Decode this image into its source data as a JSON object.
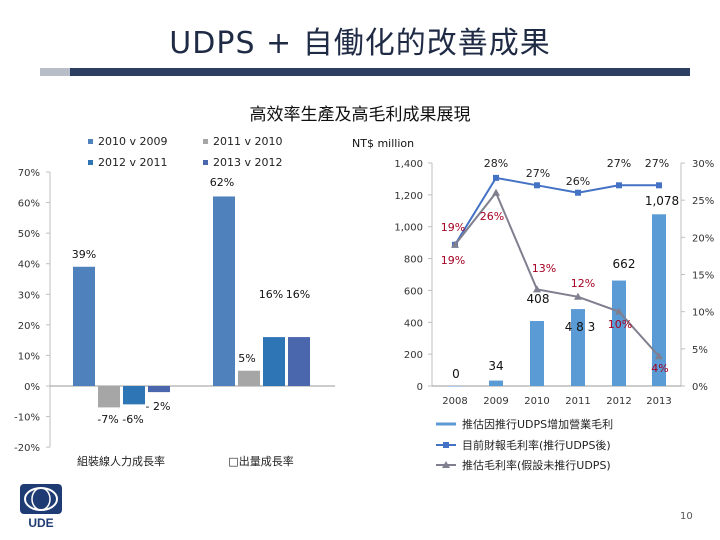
{
  "page": {
    "title": "UDPS + 自働化的改善成果",
    "subtitle": "高效率生產及高毛利成果展現",
    "page_number": "10",
    "logo_text": "UDE"
  },
  "colors": {
    "s1": "#4f81bd",
    "s2": "#a6a6a6",
    "s3": "#2e75b6",
    "s4": "#4a66ac",
    "accent_red": "#a50021",
    "line_gray": "#7f7f8f",
    "line_blue": "#5b7fbf"
  },
  "chart_data": [
    {
      "type": "bar",
      "title": "",
      "categories": [
        "組裝線人力成長率",
        "□出量成長率"
      ],
      "legend": [
        "2010 v 2009",
        "2012 v 2011",
        "2011 v 2010",
        "2013 v 2012"
      ],
      "series": [
        {
          "name": "2010 v 2009",
          "values": [
            39,
            62
          ]
        },
        {
          "name": "2011 v 2010",
          "values": [
            -7,
            5
          ]
        },
        {
          "name": "2012 v 2011",
          "values": [
            -6,
            16
          ]
        },
        {
          "name": "2013 v 2012",
          "values": [
            -2,
            16
          ]
        }
      ],
      "data_labels": [
        [
          "39%",
          "-7%",
          "-6%",
          "- 2%"
        ],
        [
          "62%",
          "5%",
          "16%",
          "16%"
        ]
      ],
      "ylim": [
        -20,
        70
      ],
      "yticks": [
        -20,
        -10,
        0,
        10,
        20,
        30,
        40,
        50,
        60,
        70
      ],
      "ytick_labels": [
        "-20%",
        "-10%",
        "0%",
        "10%",
        "20%",
        "30%",
        "40%",
        "50%",
        "60%",
        "70%"
      ]
    },
    {
      "type": "bar+line",
      "unit_label": "NT$ million",
      "categories": [
        "2008",
        "2009",
        "2010",
        "2011",
        "2012",
        "2013"
      ],
      "bar_series": {
        "name": "推估因推行UDPS增加營業毛利",
        "values": [
          0,
          34,
          408,
          483,
          662,
          1078
        ],
        "labels": [
          "0",
          "34",
          "408",
          "4 8 3",
          "662",
          "1,078"
        ]
      },
      "line_series": [
        {
          "name": "目前財報毛利率(推行UDPS後)",
          "values": [
            19,
            28,
            27,
            26,
            27,
            27
          ],
          "labels": [
            "19%",
            "28%",
            "27%",
            "26%",
            "27%",
            "27%"
          ]
        },
        {
          "name": "推估毛利率(假設未推行UDPS)",
          "values": [
            19,
            26,
            13,
            12,
            10,
            4
          ],
          "labels": [
            "19%",
            "26%",
            "13%",
            "12%",
            "10%",
            "4%"
          ]
        }
      ],
      "y_left": {
        "lim": [
          0,
          1400
        ],
        "ticks": [
          0,
          200,
          400,
          600,
          800,
          1000,
          1200,
          1400
        ],
        "tick_labels": [
          "0",
          "200",
          "400",
          "600",
          "800",
          "1,000",
          "1,200",
          "1,400"
        ]
      },
      "y_right": {
        "lim": [
          0,
          30
        ],
        "ticks": [
          0,
          5,
          10,
          15,
          20,
          25,
          30
        ],
        "tick_labels": [
          "0%",
          "5%",
          "10%",
          "15%",
          "20%",
          "25%",
          "30%"
        ]
      }
    }
  ]
}
